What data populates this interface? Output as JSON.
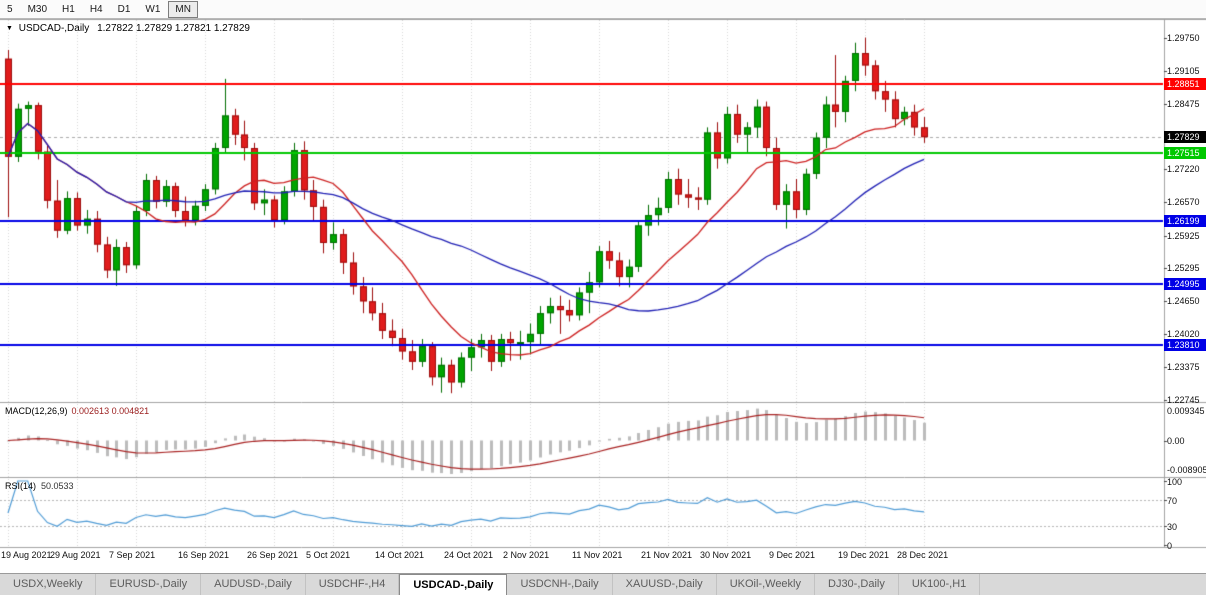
{
  "toolbar": {
    "timeframes": [
      {
        "label": "5",
        "active": false
      },
      {
        "label": "M30",
        "active": false
      },
      {
        "label": "H1",
        "active": false
      },
      {
        "label": "H4",
        "active": false
      },
      {
        "label": "D1",
        "active": false
      },
      {
        "label": "W1",
        "active": false
      },
      {
        "label": "MN",
        "active": true
      }
    ]
  },
  "chart": {
    "header": {
      "symbol_label": "USDCAD-,Daily",
      "ohlc": "1.27822 1.27829 1.27821 1.27829"
    },
    "current_price": {
      "value": 1.27829,
      "label": "1.27829",
      "bg": "#000000",
      "fg": "#ffffff"
    },
    "hlines": [
      {
        "value": 1.28851,
        "label": "1.28851",
        "color": "#ff0000"
      },
      {
        "value": 1.27515,
        "label": "1.27515",
        "color": "#00c800"
      },
      {
        "value": 1.26199,
        "label": "1.26199",
        "color": "#0000e6"
      },
      {
        "value": 1.24995,
        "label": "1.24995",
        "color": "#0000e6"
      },
      {
        "value": 1.2381,
        "label": "1.23810",
        "color": "#0000e6"
      }
    ],
    "y_axis": {
      "ticks": [
        "1.29750",
        "1.29105",
        "1.28475",
        "1.27220",
        "1.26570",
        "1.25925",
        "1.25295",
        "1.24650",
        "1.24020",
        "1.23375",
        "1.22745"
      ]
    }
  },
  "chart_data": {
    "type": "candlestick",
    "symbol": "USDCAD",
    "timeframe": "Daily",
    "ylim": [
      1.227,
      1.301
    ],
    "x_ticks": {
      "labels": [
        "19 Aug 2021",
        "29 Aug 2021",
        "7 Sep 2021",
        "16 Sep 2021",
        "26 Sep 2021",
        "5 Oct 2021",
        "14 Oct 2021",
        "24 Oct 2021",
        "2 Nov 2021",
        "11 Nov 2021",
        "21 Nov 2021",
        "30 Nov 2021",
        "9 Dec 2021",
        "19 Dec 2021",
        "28 Dec 2021"
      ],
      "indices": [
        0,
        7,
        13,
        20,
        27,
        33,
        40,
        47,
        53,
        60,
        67,
        73,
        80,
        87,
        93
      ]
    },
    "candles": [
      [
        1.2935,
        1.2952,
        1.2628,
        1.2745
      ],
      [
        1.2745,
        1.2848,
        1.2735,
        1.2838
      ],
      [
        1.2838,
        1.2852,
        1.2805,
        1.2845
      ],
      [
        1.2845,
        1.285,
        1.274,
        1.2755
      ],
      [
        1.2755,
        1.2768,
        1.2645,
        1.266
      ],
      [
        1.266,
        1.27,
        1.2588,
        1.2602
      ],
      [
        1.2602,
        1.2678,
        1.2595,
        1.2665
      ],
      [
        1.2665,
        1.2676,
        1.2602,
        1.2612
      ],
      [
        1.2612,
        1.2642,
        1.2596,
        1.2625
      ],
      [
        1.2625,
        1.264,
        1.256,
        1.2575
      ],
      [
        1.2575,
        1.259,
        1.251,
        1.2525
      ],
      [
        1.2525,
        1.2585,
        1.2495,
        1.257
      ],
      [
        1.257,
        1.258,
        1.252,
        1.2535
      ],
      [
        1.2535,
        1.265,
        1.2528,
        1.264
      ],
      [
        1.264,
        1.2712,
        1.263,
        1.27
      ],
      [
        1.27,
        1.2708,
        1.2645,
        1.2658
      ],
      [
        1.2658,
        1.27,
        1.2648,
        1.2688
      ],
      [
        1.2688,
        1.2695,
        1.2628,
        1.264
      ],
      [
        1.264,
        1.2668,
        1.261,
        1.2622
      ],
      [
        1.2622,
        1.266,
        1.2612,
        1.265
      ],
      [
        1.265,
        1.2692,
        1.264,
        1.2682
      ],
      [
        1.2682,
        1.2772,
        1.2672,
        1.2762
      ],
      [
        1.2762,
        1.2896,
        1.2752,
        1.2825
      ],
      [
        1.2825,
        1.2838,
        1.2768,
        1.2788
      ],
      [
        1.2788,
        1.2815,
        1.2738,
        1.2762
      ],
      [
        1.2762,
        1.2772,
        1.2642,
        1.2655
      ],
      [
        1.2655,
        1.2682,
        1.2632,
        1.2662
      ],
      [
        1.2662,
        1.267,
        1.2608,
        1.2622
      ],
      [
        1.2622,
        1.2688,
        1.2614,
        1.2678
      ],
      [
        1.2678,
        1.2772,
        1.2668,
        1.2758
      ],
      [
        1.2758,
        1.2775,
        1.2662,
        1.268
      ],
      [
        1.268,
        1.27,
        1.262,
        1.2648
      ],
      [
        1.2648,
        1.2662,
        1.2558,
        1.2578
      ],
      [
        1.2578,
        1.2618,
        1.2565,
        1.2595
      ],
      [
        1.2595,
        1.2605,
        1.2518,
        1.254
      ],
      [
        1.254,
        1.256,
        1.2478,
        1.2494
      ],
      [
        1.2494,
        1.2512,
        1.2442,
        1.2465
      ],
      [
        1.2465,
        1.2492,
        1.2428,
        1.2442
      ],
      [
        1.2442,
        1.2462,
        1.2392,
        1.2408
      ],
      [
        1.2408,
        1.243,
        1.2378,
        1.2394
      ],
      [
        1.2394,
        1.2412,
        1.2352,
        1.2368
      ],
      [
        1.2368,
        1.239,
        1.2332,
        1.2348
      ],
      [
        1.2348,
        1.2392,
        1.2338,
        1.2378
      ],
      [
        1.2378,
        1.2386,
        1.2302,
        1.2318
      ],
      [
        1.2318,
        1.2356,
        1.2288,
        1.2342
      ],
      [
        1.2342,
        1.2352,
        1.2287,
        1.2308
      ],
      [
        1.2308,
        1.2366,
        1.2298,
        1.2356
      ],
      [
        1.2356,
        1.2392,
        1.233,
        1.2376
      ],
      [
        1.2376,
        1.2402,
        1.2356,
        1.239
      ],
      [
        1.239,
        1.24,
        1.233,
        1.2348
      ],
      [
        1.2348,
        1.2402,
        1.2338,
        1.2392
      ],
      [
        1.2392,
        1.2406,
        1.235,
        1.2384
      ],
      [
        1.2384,
        1.2408,
        1.2352,
        1.2386
      ],
      [
        1.2386,
        1.2422,
        1.2362,
        1.2402
      ],
      [
        1.2402,
        1.2456,
        1.2382,
        1.2442
      ],
      [
        1.2442,
        1.2472,
        1.2422,
        1.2456
      ],
      [
        1.2456,
        1.2476,
        1.2402,
        1.2448
      ],
      [
        1.2448,
        1.2468,
        1.2426,
        1.2438
      ],
      [
        1.2438,
        1.2492,
        1.2428,
        1.2482
      ],
      [
        1.2482,
        1.2522,
        1.2442,
        1.2502
      ],
      [
        1.2502,
        1.2572,
        1.2492,
        1.2562
      ],
      [
        1.2562,
        1.2582,
        1.2528,
        1.2544
      ],
      [
        1.2544,
        1.256,
        1.2494,
        1.2512
      ],
      [
        1.2512,
        1.2546,
        1.2492,
        1.2532
      ],
      [
        1.2532,
        1.2622,
        1.2522,
        1.2612
      ],
      [
        1.2612,
        1.2652,
        1.2592,
        1.2632
      ],
      [
        1.2632,
        1.2666,
        1.2612,
        1.2646
      ],
      [
        1.2646,
        1.2716,
        1.2636,
        1.2702
      ],
      [
        1.2702,
        1.2722,
        1.2652,
        1.2672
      ],
      [
        1.2672,
        1.2702,
        1.2646,
        1.2666
      ],
      [
        1.2666,
        1.2686,
        1.2642,
        1.2662
      ],
      [
        1.2662,
        1.2802,
        1.2652,
        1.2792
      ],
      [
        1.2792,
        1.2812,
        1.2722,
        1.2742
      ],
      [
        1.2742,
        1.2842,
        1.2732,
        1.2828
      ],
      [
        1.2828,
        1.2846,
        1.2772,
        1.2788
      ],
      [
        1.2788,
        1.2812,
        1.2752,
        1.2802
      ],
      [
        1.2802,
        1.2856,
        1.2782,
        1.2842
      ],
      [
        1.2842,
        1.2852,
        1.2746,
        1.2762
      ],
      [
        1.2762,
        1.2782,
        1.2642,
        1.2652
      ],
      [
        1.2652,
        1.2692,
        1.2606,
        1.2678
      ],
      [
        1.2678,
        1.2702,
        1.2626,
        1.2642
      ],
      [
        1.2642,
        1.2722,
        1.2632,
        1.2712
      ],
      [
        1.2712,
        1.2792,
        1.2702,
        1.2782
      ],
      [
        1.2782,
        1.2862,
        1.2762,
        1.2846
      ],
      [
        1.2846,
        1.2942,
        1.2802,
        1.2832
      ],
      [
        1.2832,
        1.2902,
        1.2812,
        1.2892
      ],
      [
        1.2892,
        1.2966,
        1.2872,
        1.2946
      ],
      [
        1.2946,
        1.2976,
        1.2902,
        1.2922
      ],
      [
        1.2922,
        1.2932,
        1.2856,
        1.2872
      ],
      [
        1.2872,
        1.2892,
        1.2832,
        1.2856
      ],
      [
        1.2856,
        1.2872,
        1.2802,
        1.2818
      ],
      [
        1.2818,
        1.2842,
        1.2806,
        1.2832
      ],
      [
        1.2832,
        1.2846,
        1.2786,
        1.2802
      ],
      [
        1.2802,
        1.2822,
        1.2772,
        1.2783
      ]
    ],
    "overlays": [
      {
        "name": "ma-fast",
        "type": "sma",
        "period": 13,
        "color": "#cc1f1f"
      },
      {
        "name": "ma-slow",
        "type": "sma",
        "period": 34,
        "color": "#1f1fb4"
      }
    ],
    "indicators": [
      {
        "name": "MACD",
        "label": "MACD(12,26,9)",
        "values_label": "0.002613 0.004821",
        "params": [
          12,
          26,
          9
        ],
        "axis_labels": [
          "0.009345",
          "0.00",
          "-0.008905"
        ],
        "histogram_color": "#bcbcbc",
        "signal_color": "#a82222"
      },
      {
        "name": "RSI",
        "label": "RSI(14)",
        "value_label": "50.0533",
        "period": 14,
        "levels": [
          70,
          30
        ],
        "axis_labels": [
          "100",
          "70",
          "30",
          "0"
        ],
        "line_color": "#4f9bd5"
      }
    ]
  },
  "tabs": {
    "items": [
      {
        "label": "USDX,Weekly",
        "active": false
      },
      {
        "label": "EURUSD-,Daily",
        "active": false
      },
      {
        "label": "AUDUSD-,Daily",
        "active": false
      },
      {
        "label": "USDCHF-,H4",
        "active": false
      },
      {
        "label": "USDCAD-,Daily",
        "active": true
      },
      {
        "label": "USDCNH-,Daily",
        "active": false
      },
      {
        "label": "XAUUSD-,Daily",
        "active": false
      },
      {
        "label": "UKOil-,Weekly",
        "active": false
      },
      {
        "label": "DJ30-,Daily",
        "active": false
      },
      {
        "label": "UK100-,H1",
        "active": false
      }
    ]
  },
  "colors": {
    "bull": "#00a400",
    "bull_dark": "#006d00",
    "bear": "#e01c1c",
    "bear_dark": "#9c0d0d",
    "grid": "#d6d6d6",
    "divider": "#a2a2a2"
  }
}
